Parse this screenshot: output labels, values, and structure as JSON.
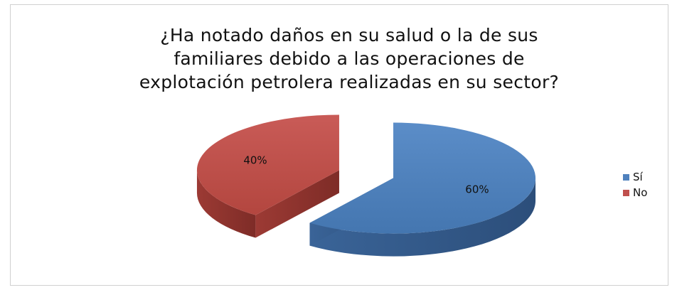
{
  "chart_data": {
    "type": "pie",
    "title_lines": [
      "¿Ha notado daños en su salud o la de sus",
      "familiares debido a las operaciones de",
      "explotación petrolera realizadas en su sector?"
    ],
    "categories": [
      "Sí",
      "No"
    ],
    "values": [
      60,
      40
    ],
    "data_labels": [
      "60%",
      "40%"
    ],
    "colors": [
      "#4f81bd",
      "#c0504d"
    ],
    "three_d": true,
    "exploded": true,
    "legend_position": "right"
  }
}
